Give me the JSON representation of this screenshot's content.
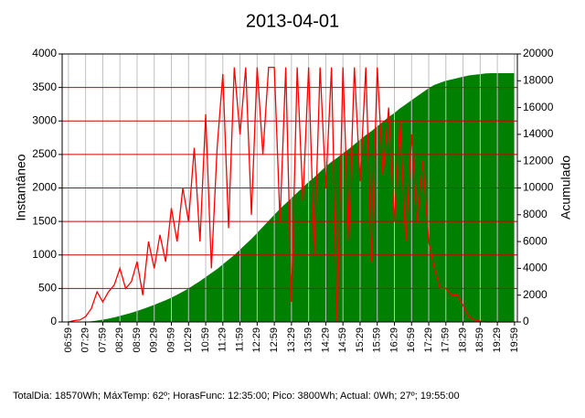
{
  "chart_data": {
    "type": "line",
    "title": "2013-04-01",
    "ylabel": "Instantâneo",
    "y2label": "Acumulado",
    "annotation": "TotalDia: 18570Wh; MáxTemp: 62º; HorasFunc: 12:35:00; Pico: 3800Wh; Actual: 0Wh; 27º; 19:55:00",
    "x": [
      "06:59",
      "07:09",
      "07:19",
      "07:29",
      "07:39",
      "07:49",
      "07:59",
      "08:09",
      "08:19",
      "08:29",
      "08:39",
      "08:49",
      "08:59",
      "09:09",
      "09:19",
      "09:29",
      "09:39",
      "09:49",
      "09:59",
      "10:09",
      "10:19",
      "10:29",
      "10:39",
      "10:49",
      "10:59",
      "11:09",
      "11:19",
      "11:29",
      "11:39",
      "11:49",
      "11:59",
      "12:09",
      "12:19",
      "12:29",
      "12:39",
      "12:49",
      "12:59",
      "13:09",
      "13:19",
      "13:29",
      "13:39",
      "13:49",
      "13:59",
      "14:09",
      "14:19",
      "14:29",
      "14:39",
      "14:49",
      "14:59",
      "15:09",
      "15:19",
      "15:29",
      "15:39",
      "15:49",
      "15:59",
      "16:09",
      "16:19",
      "16:29",
      "16:39",
      "16:49",
      "16:59",
      "17:09",
      "17:19",
      "17:29",
      "17:39",
      "17:49",
      "17:59",
      "18:09",
      "18:19",
      "18:29",
      "18:39",
      "18:49",
      "18:59",
      "19:09",
      "19:19",
      "19:29",
      "19:39",
      "19:49",
      "19:59"
    ],
    "series": [
      {
        "style": "area",
        "axis": "y2",
        "color": "#008000",
        "values": [
          0,
          5,
          10,
          20,
          50,
          100,
          170,
          250,
          340,
          450,
          560,
          680,
          820,
          960,
          1120,
          1280,
          1450,
          1620,
          1820,
          2030,
          2260,
          2500,
          2780,
          3050,
          3350,
          3650,
          3950,
          4300,
          4650,
          5000,
          5400,
          5800,
          6200,
          6650,
          7100,
          7550,
          8000,
          8450,
          8850,
          9250,
          9650,
          10050,
          10450,
          10800,
          11200,
          11600,
          11950,
          12250,
          12600,
          12900,
          13250,
          13600,
          13950,
          14250,
          14600,
          14950,
          15300,
          15600,
          15950,
          16250,
          16550,
          16850,
          17150,
          17450,
          17700,
          17850,
          18000,
          18100,
          18200,
          18300,
          18400,
          18450,
          18500,
          18550,
          18570,
          18570,
          18570,
          18570,
          18570
        ]
      },
      {
        "style": "line",
        "color": "#ff0000",
        "values": [
          0,
          20,
          30,
          80,
          200,
          450,
          300,
          450,
          550,
          800,
          500,
          600,
          900,
          400,
          1200,
          800,
          1300,
          900,
          1700,
          1200,
          2000,
          1500,
          2600,
          1200,
          3100,
          800,
          2600,
          3700,
          1400,
          3800,
          2800,
          3800,
          1600,
          3800,
          2500,
          3800,
          3800,
          1500,
          3800,
          300,
          3800,
          1800,
          3800,
          1000,
          3800,
          2000,
          3800,
          0,
          3800,
          1200,
          3800,
          2100,
          3800,
          900,
          3800,
          2200,
          3200,
          1500,
          3000,
          1200,
          2800,
          1500,
          2400,
          1200,
          800,
          500,
          500,
          400,
          400,
          250,
          80,
          30,
          10,
          0,
          0,
          0,
          0,
          0,
          0
        ]
      }
    ],
    "xlim": [
      "06:48",
      "20:04"
    ],
    "xticks": [
      "06:59",
      "07:29",
      "07:59",
      "08:29",
      "08:59",
      "09:29",
      "09:59",
      "10:29",
      "10:59",
      "11:29",
      "11:59",
      "12:29",
      "12:59",
      "13:29",
      "13:59",
      "14:29",
      "14:59",
      "15:29",
      "15:59",
      "16:29",
      "16:59",
      "17:29",
      "17:59",
      "18:29",
      "18:59",
      "19:29",
      "19:59"
    ],
    "ylim": [
      0,
      4000
    ],
    "yticks": [
      0,
      500,
      1000,
      1500,
      2000,
      2500,
      3000,
      3500,
      4000
    ],
    "y2lim": [
      0,
      20000
    ],
    "y2ticks": [
      0,
      2000,
      4000,
      6000,
      8000,
      10000,
      12000,
      14000,
      16000,
      18000,
      20000
    ],
    "grid": true,
    "grid_color": "#c0c0c0",
    "hgrid_color": "#cc0000"
  }
}
